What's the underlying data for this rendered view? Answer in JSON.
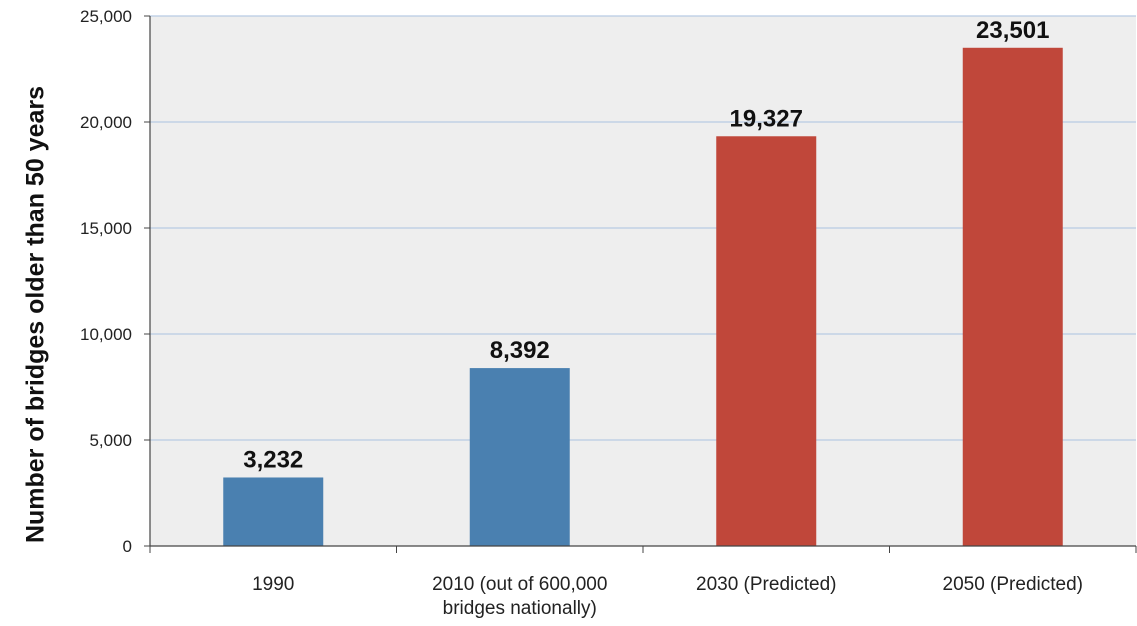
{
  "chart_data": {
    "type": "bar",
    "categories": [
      "1990",
      "2010 (out of 600,000 bridges nationally)",
      "2030 (Predicted)",
      "2050 (Predicted)"
    ],
    "category_lines": [
      [
        "1990"
      ],
      [
        "2010 (out of 600,000",
        "bridges nationally)"
      ],
      [
        "2030 (Predicted)"
      ],
      [
        "2050 (Predicted)"
      ]
    ],
    "values": [
      3232,
      8392,
      19327,
      23501
    ],
    "value_labels": [
      "3,232",
      "8,392",
      "19,327",
      "23,501"
    ],
    "bar_colors": [
      "#4a80b0",
      "#4a80b0",
      "#c0473a",
      "#c0473a"
    ],
    "ylabel": "Number of bridges older than 50 years",
    "xlabel": "",
    "ylim": [
      0,
      25000
    ],
    "yticks": [
      0,
      5000,
      10000,
      15000,
      20000,
      25000
    ],
    "ytick_labels": [
      "0",
      "5,000",
      "10,000",
      "15,000",
      "20,000",
      "25,000"
    ],
    "grid": true,
    "colors": {
      "plot_background": "#eeeeee",
      "gridline": "#b8cbe3",
      "axis": "#444444"
    }
  }
}
